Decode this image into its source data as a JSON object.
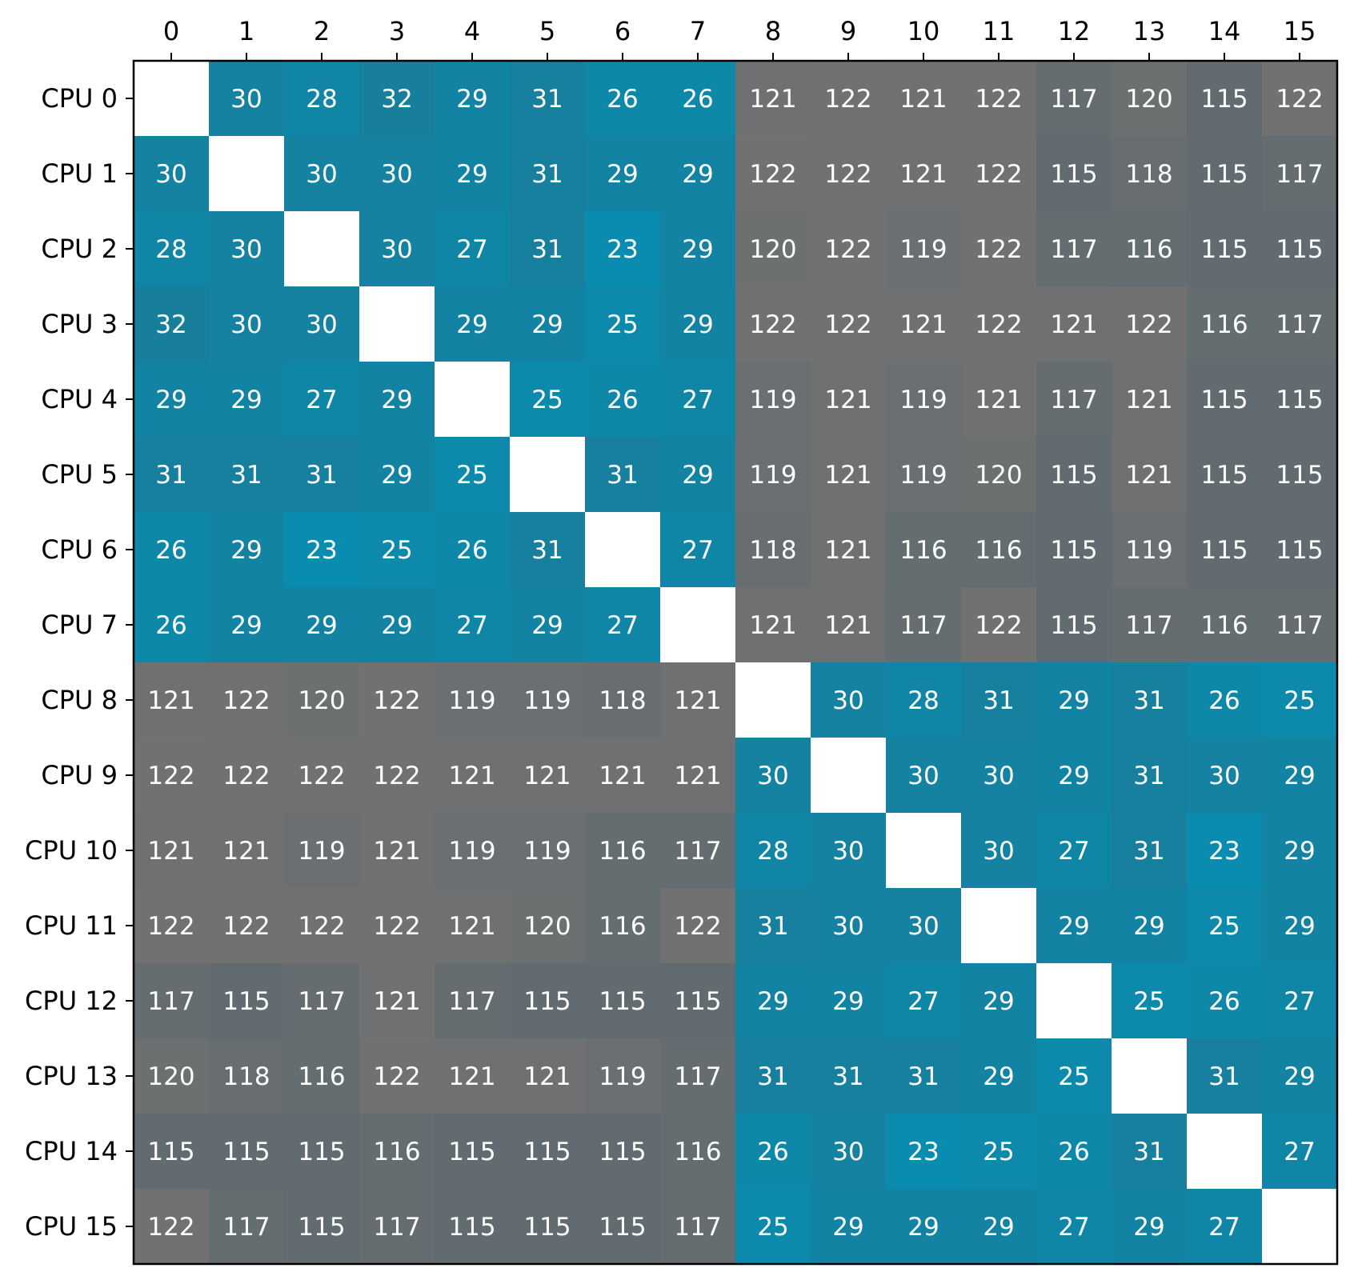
{
  "chart_data": {
    "type": "heatmap",
    "title": "",
    "xlabel": "",
    "ylabel": "",
    "x_tick_labels": [
      "0",
      "1",
      "2",
      "3",
      "4",
      "5",
      "6",
      "7",
      "8",
      "9",
      "10",
      "11",
      "12",
      "13",
      "14",
      "15"
    ],
    "y_tick_labels": [
      "CPU 0",
      "CPU 1",
      "CPU 2",
      "CPU 3",
      "CPU 4",
      "CPU 5",
      "CPU 6",
      "CPU 7",
      "CPU 8",
      "CPU 9",
      "CPU 10",
      "CPU 11",
      "CPU 12",
      "CPU 13",
      "CPU 14",
      "CPU 15"
    ],
    "x_axis_position": "top",
    "grid": false,
    "colorbar": false,
    "colors": {
      "low": "#0a8cb0",
      "low_dark": "#177f9c",
      "high": "#717171",
      "high_cool": "#626c70",
      "diagonal": "#ffffff",
      "annotation_text": "#ffffff"
    },
    "values": [
      [
        null,
        30,
        28,
        32,
        29,
        31,
        26,
        26,
        121,
        122,
        121,
        122,
        117,
        120,
        115,
        122
      ],
      [
        30,
        null,
        30,
        30,
        29,
        31,
        29,
        29,
        122,
        122,
        121,
        122,
        115,
        118,
        115,
        117
      ],
      [
        28,
        30,
        null,
        30,
        27,
        31,
        23,
        29,
        120,
        122,
        119,
        122,
        117,
        116,
        115,
        115
      ],
      [
        32,
        30,
        30,
        null,
        29,
        29,
        25,
        29,
        122,
        122,
        121,
        122,
        121,
        122,
        116,
        117
      ],
      [
        29,
        29,
        27,
        29,
        null,
        25,
        26,
        27,
        119,
        121,
        119,
        121,
        117,
        121,
        115,
        115
      ],
      [
        31,
        31,
        31,
        29,
        25,
        null,
        31,
        29,
        119,
        121,
        119,
        120,
        115,
        121,
        115,
        115
      ],
      [
        26,
        29,
        23,
        25,
        26,
        31,
        null,
        27,
        118,
        121,
        116,
        116,
        115,
        119,
        115,
        115
      ],
      [
        26,
        29,
        29,
        29,
        27,
        29,
        27,
        null,
        121,
        121,
        117,
        122,
        115,
        117,
        116,
        117
      ],
      [
        121,
        122,
        120,
        122,
        119,
        119,
        118,
        121,
        null,
        30,
        28,
        31,
        29,
        31,
        26,
        25
      ],
      [
        122,
        122,
        122,
        122,
        121,
        121,
        121,
        121,
        30,
        null,
        30,
        30,
        29,
        31,
        30,
        29
      ],
      [
        121,
        121,
        119,
        121,
        119,
        119,
        116,
        117,
        28,
        30,
        null,
        30,
        27,
        31,
        23,
        29
      ],
      [
        122,
        122,
        122,
        122,
        121,
        120,
        116,
        122,
        31,
        30,
        30,
        null,
        29,
        29,
        25,
        29
      ],
      [
        117,
        115,
        117,
        121,
        117,
        115,
        115,
        115,
        29,
        29,
        27,
        29,
        null,
        25,
        26,
        27
      ],
      [
        120,
        118,
        116,
        122,
        121,
        121,
        119,
        117,
        31,
        31,
        31,
        29,
        25,
        null,
        31,
        29
      ],
      [
        115,
        115,
        115,
        116,
        115,
        115,
        115,
        116,
        26,
        30,
        23,
        25,
        26,
        31,
        null,
        27
      ],
      [
        122,
        117,
        115,
        117,
        115,
        115,
        115,
        117,
        25,
        29,
        29,
        29,
        27,
        29,
        27,
        null
      ]
    ]
  }
}
